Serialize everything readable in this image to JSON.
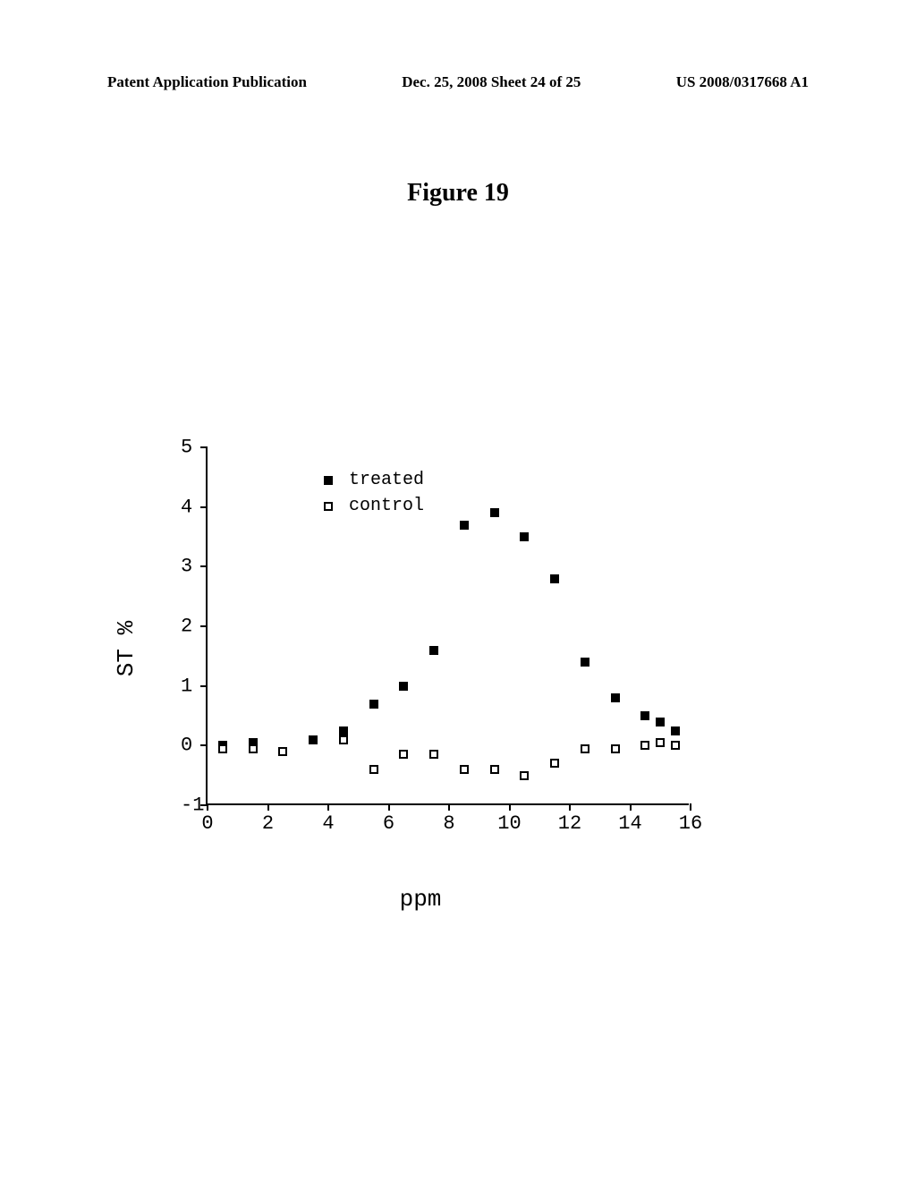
{
  "header": {
    "left": "Patent Application Publication",
    "center": "Dec. 25, 2008  Sheet 24 of 25",
    "right": "US 2008/0317668 A1"
  },
  "figure_title": "Figure 19",
  "chart": {
    "type": "scatter",
    "xlabel": "ppm",
    "ylabel": "ST %",
    "xlim": [
      0,
      16
    ],
    "ylim": [
      -1,
      5
    ],
    "xtick_step": 2,
    "ytick_step": 1,
    "xticks": [
      0,
      2,
      4,
      6,
      8,
      10,
      12,
      14,
      16
    ],
    "yticks": [
      -1,
      0,
      1,
      2,
      3,
      4,
      5
    ],
    "background_color": "#ffffff",
    "axis_color": "#000000",
    "label_fontsize": 26,
    "tick_fontsize": 22,
    "marker_size": 10,
    "legend": {
      "position": "upper-left-inside",
      "items": [
        {
          "label": "treated",
          "marker": "filled-square",
          "color": "#000000"
        },
        {
          "label": "control",
          "marker": "open-square",
          "color": "#000000"
        }
      ]
    },
    "series": [
      {
        "name": "treated",
        "marker": "filled-square",
        "color": "#000000",
        "points": [
          {
            "x": 0.5,
            "y": 0.0
          },
          {
            "x": 1.5,
            "y": 0.05
          },
          {
            "x": 3.5,
            "y": 0.1
          },
          {
            "x": 4.5,
            "y": 0.25
          },
          {
            "x": 5.5,
            "y": 0.7
          },
          {
            "x": 6.5,
            "y": 1.0
          },
          {
            "x": 7.5,
            "y": 1.6
          },
          {
            "x": 8.5,
            "y": 3.7
          },
          {
            "x": 9.5,
            "y": 3.9
          },
          {
            "x": 10.5,
            "y": 3.5
          },
          {
            "x": 11.5,
            "y": 2.8
          },
          {
            "x": 12.5,
            "y": 1.4
          },
          {
            "x": 13.5,
            "y": 0.8
          },
          {
            "x": 14.5,
            "y": 0.5
          },
          {
            "x": 15.0,
            "y": 0.4
          },
          {
            "x": 15.5,
            "y": 0.25
          }
        ]
      },
      {
        "name": "control",
        "marker": "open-square",
        "color": "#000000",
        "points": [
          {
            "x": 0.5,
            "y": -0.05
          },
          {
            "x": 1.5,
            "y": -0.05
          },
          {
            "x": 2.5,
            "y": -0.1
          },
          {
            "x": 4.5,
            "y": 0.1
          },
          {
            "x": 5.5,
            "y": -0.4
          },
          {
            "x": 6.5,
            "y": -0.15
          },
          {
            "x": 7.5,
            "y": -0.15
          },
          {
            "x": 8.5,
            "y": -0.4
          },
          {
            "x": 9.5,
            "y": -0.4
          },
          {
            "x": 10.5,
            "y": -0.5
          },
          {
            "x": 11.5,
            "y": -0.3
          },
          {
            "x": 12.5,
            "y": -0.05
          },
          {
            "x": 13.5,
            "y": -0.05
          },
          {
            "x": 14.5,
            "y": 0.0
          },
          {
            "x": 15.0,
            "y": 0.05
          },
          {
            "x": 15.5,
            "y": 0.0
          }
        ]
      }
    ]
  }
}
